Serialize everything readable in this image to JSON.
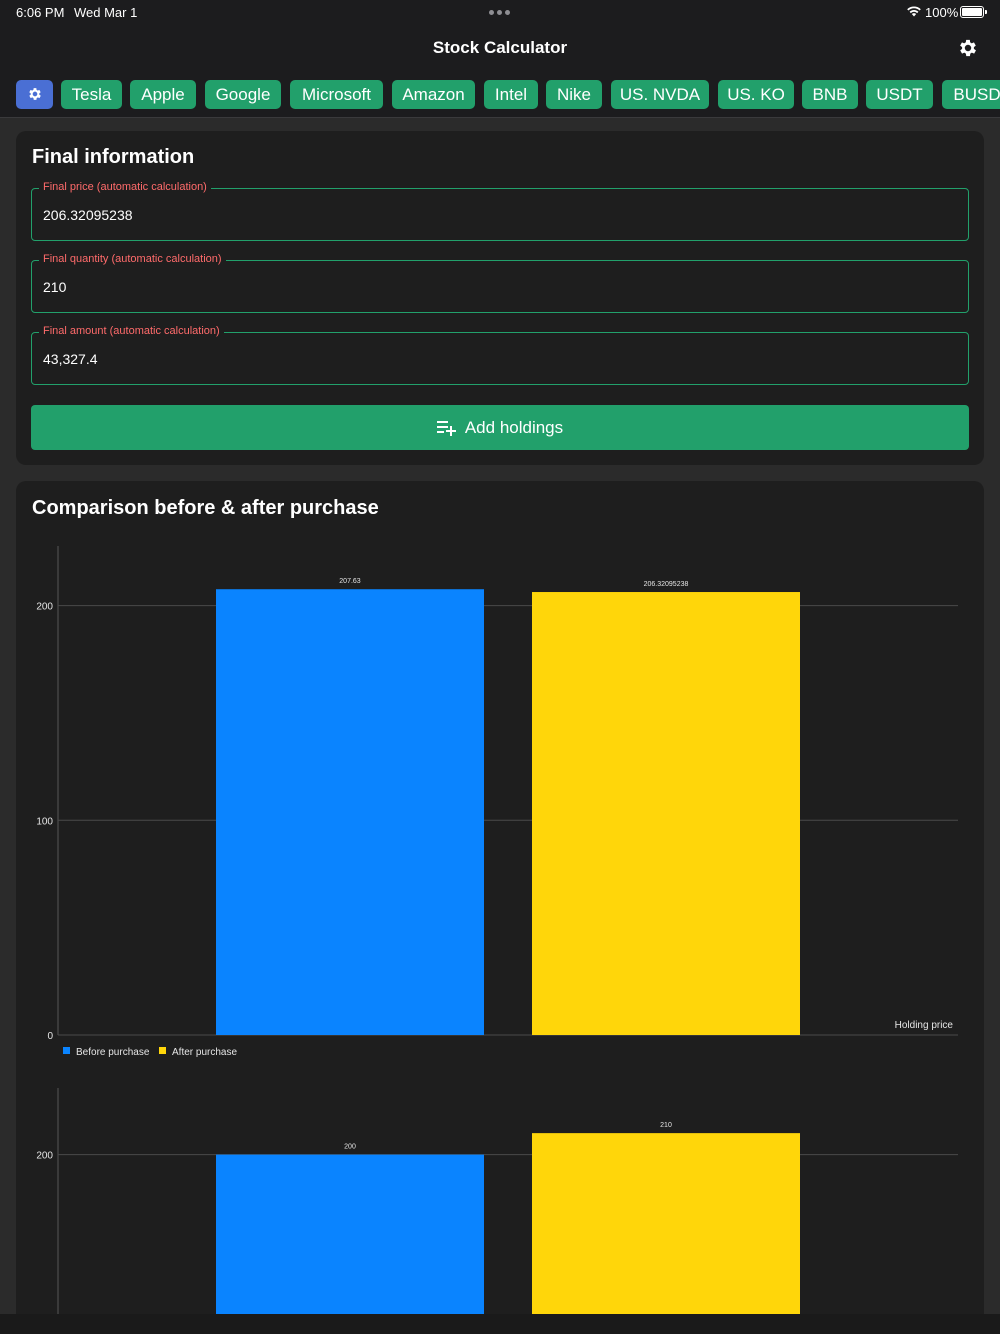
{
  "status_bar": {
    "time": "6:06 PM",
    "date": "Wed Mar 1",
    "battery": "100%"
  },
  "nav": {
    "title": "Stock Calculator"
  },
  "chips": [
    {
      "label": "Tesla"
    },
    {
      "label": "Apple"
    },
    {
      "label": "Google"
    },
    {
      "label": "Microsoft"
    },
    {
      "label": "Amazon"
    },
    {
      "label": "Intel"
    },
    {
      "label": "Nike"
    },
    {
      "label": "US. NVDA"
    },
    {
      "label": "US. KO"
    },
    {
      "label": "BNB"
    },
    {
      "label": "USDT"
    },
    {
      "label": "BUSD"
    }
  ],
  "final_info": {
    "title": "Final information",
    "price_label": "Final price (automatic calculation)",
    "price_value": "206.32095238",
    "quantity_label": "Final quantity (automatic calculation)",
    "quantity_value": "210",
    "amount_label": "Final amount (automatic calculation)",
    "amount_value": "43,327.4",
    "add_button": "Add holdings"
  },
  "comparison": {
    "title": "Comparison before & after purchase"
  },
  "colors": {
    "accent": "#22a06b",
    "before": "#0a84ff",
    "after": "#ffd60a",
    "error": "#ff6b6b"
  },
  "chart_data": [
    {
      "type": "bar",
      "categories": [
        "Holding price"
      ],
      "series": [
        {
          "name": "Before purchase",
          "values": [
            207.63
          ],
          "label": "207.63"
        },
        {
          "name": "After purchase",
          "values": [
            206.32095238
          ],
          "label": "206.32095238"
        }
      ],
      "yticks": [
        0,
        100,
        200
      ],
      "ylim": [
        0,
        228
      ],
      "xlabel": "Holding price",
      "legend": "bottom-left",
      "grid": true
    },
    {
      "type": "bar",
      "categories": [
        ""
      ],
      "series": [
        {
          "name": "Before purchase",
          "values": [
            200
          ],
          "label": "200"
        },
        {
          "name": "After purchase",
          "values": [
            210
          ],
          "label": "210"
        }
      ],
      "yticks": [
        200
      ],
      "ylim": [
        0,
        228
      ],
      "grid": true
    }
  ]
}
